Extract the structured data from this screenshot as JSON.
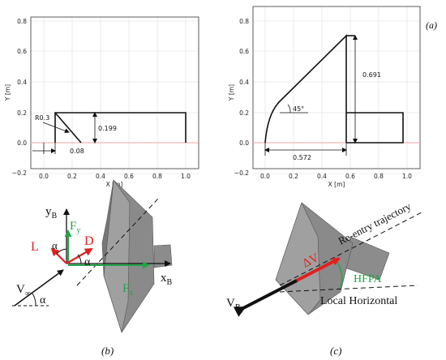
{
  "panel_a_tag": "(a)",
  "panel_b_tag": "(b)",
  "panel_c_tag": "(c)",
  "plot_left": {
    "ylabel": "Y [m]",
    "xlabel": "X [m]",
    "xticks": [
      "0.0",
      "0.2",
      "0.4",
      "0.6",
      "0.8",
      "1.0"
    ],
    "yticks": [
      "0.8",
      "0.6",
      "0.4",
      "0.2",
      "0.0",
      "−0.2"
    ],
    "dim_radius": "R0.3",
    "dim_height": "0.199",
    "dim_width": "0.08"
  },
  "plot_right": {
    "ylabel": "Y [m]",
    "xlabel": "X [m]",
    "xticks": [
      "0.0",
      "0.2",
      "0.4",
      "0.6",
      "0.8",
      "1.0"
    ],
    "yticks": [
      "0.8",
      "0.6",
      "0.4",
      "0.2",
      "0.0",
      "−0.2"
    ],
    "dim_height": "0.691",
    "dim_angle": "45°",
    "dim_length": "0.572"
  },
  "diagram_b": {
    "yB": "y",
    "yB_sub": "B",
    "xB": "x",
    "xB_sub": "B",
    "Fy": "F",
    "Fy_sub": "y",
    "Fx": "F",
    "Fx_sub": "x",
    "L": "L",
    "D": "D",
    "alpha": "α",
    "Vinf": "V",
    "Vinf_sub": "∞",
    "colors": {
      "lift": "#e0201f",
      "force": "#22a447"
    }
  },
  "diagram_c": {
    "trajectory": "Re-entry trajectory",
    "dV": "ΔV",
    "hfpa": "HFPA",
    "local_h": "Local Horizontal",
    "VB": "V",
    "VB_sub": "B"
  }
}
